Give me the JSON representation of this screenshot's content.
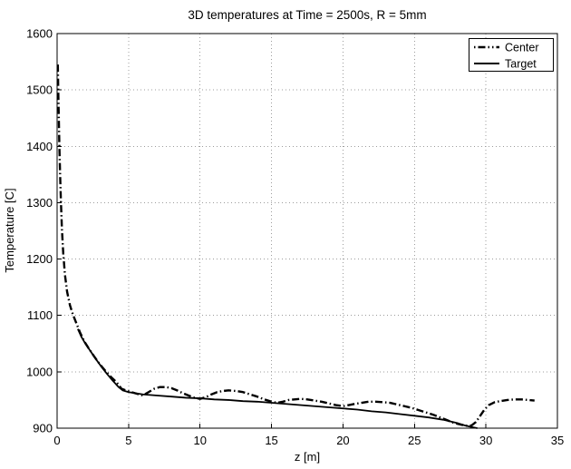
{
  "figure": {
    "background": "#ffffff",
    "text_color": "#000000",
    "grid_color": "#9c9c9c",
    "axis_color": "#000000"
  },
  "chart_data": {
    "type": "line",
    "title": "3D temperatures at Time = 2500s, R = 5mm",
    "xlabel": "z [m]",
    "ylabel": "Temperature [C]",
    "xlim": [
      0,
      35
    ],
    "ylim": [
      900,
      1600
    ],
    "x_ticks": [
      0,
      5,
      10,
      15,
      20,
      25,
      30,
      35
    ],
    "y_ticks": [
      900,
      1000,
      1100,
      1200,
      1300,
      1400,
      1500,
      1600
    ],
    "grid": true,
    "grid_style": "dotted",
    "legend_position": "top-right",
    "series": [
      {
        "name": "Center",
        "line_style": "dash-dot",
        "line_width": 2.4,
        "color": "#000000",
        "points": [
          [
            0.05,
            1545
          ],
          [
            0.08,
            1500
          ],
          [
            0.12,
            1450
          ],
          [
            0.16,
            1400
          ],
          [
            0.21,
            1350
          ],
          [
            0.27,
            1300
          ],
          [
            0.34,
            1252
          ],
          [
            0.43,
            1210
          ],
          [
            0.55,
            1172
          ],
          [
            0.7,
            1142
          ],
          [
            0.9,
            1118
          ],
          [
            1.1,
            1102
          ],
          [
            1.35,
            1086
          ],
          [
            1.6,
            1070
          ],
          [
            1.9,
            1054
          ],
          [
            2.2,
            1042
          ],
          [
            2.6,
            1027
          ],
          [
            3.0,
            1013
          ],
          [
            3.4,
            1001
          ],
          [
            3.8,
            990
          ],
          [
            4.1,
            983
          ],
          [
            4.3,
            977
          ],
          [
            4.5,
            970
          ],
          [
            4.8,
            967
          ],
          [
            5.2,
            964
          ],
          [
            5.6,
            961
          ],
          [
            6.0,
            958
          ],
          [
            6.4,
            964
          ],
          [
            6.8,
            970
          ],
          [
            7.2,
            973
          ],
          [
            7.6,
            973
          ],
          [
            8.0,
            971
          ],
          [
            8.4,
            967
          ],
          [
            8.8,
            962
          ],
          [
            9.2,
            958
          ],
          [
            9.6,
            954
          ],
          [
            10.0,
            952
          ],
          [
            10.4,
            955
          ],
          [
            10.8,
            960
          ],
          [
            11.2,
            964
          ],
          [
            11.6,
            966
          ],
          [
            12.0,
            967
          ],
          [
            12.5,
            966
          ],
          [
            13.0,
            964
          ],
          [
            13.5,
            960
          ],
          [
            14.0,
            956
          ],
          [
            14.5,
            951
          ],
          [
            15.0,
            947
          ],
          [
            15.4,
            945
          ],
          [
            15.8,
            947
          ],
          [
            16.2,
            950
          ],
          [
            16.6,
            951
          ],
          [
            17.0,
            952
          ],
          [
            17.5,
            951
          ],
          [
            18.0,
            949
          ],
          [
            18.5,
            947
          ],
          [
            19.0,
            944
          ],
          [
            19.5,
            941
          ],
          [
            20.0,
            939
          ],
          [
            20.4,
            941
          ],
          [
            20.8,
            943
          ],
          [
            21.3,
            945
          ],
          [
            21.8,
            947
          ],
          [
            22.3,
            947
          ],
          [
            22.8,
            946
          ],
          [
            23.3,
            945
          ],
          [
            23.8,
            942
          ],
          [
            24.3,
            939
          ],
          [
            24.8,
            936
          ],
          [
            25.3,
            932
          ],
          [
            25.8,
            928
          ],
          [
            26.3,
            924
          ],
          [
            26.8,
            919
          ],
          [
            27.3,
            914
          ],
          [
            27.8,
            909
          ],
          [
            28.3,
            906
          ],
          [
            28.7,
            904
          ],
          [
            29.0,
            905
          ],
          [
            29.3,
            911
          ],
          [
            29.6,
            922
          ],
          [
            29.9,
            933
          ],
          [
            30.2,
            941
          ],
          [
            30.6,
            946
          ],
          [
            31.0,
            948
          ],
          [
            31.5,
            950
          ],
          [
            32.0,
            951
          ],
          [
            32.5,
            951
          ],
          [
            33.0,
            950
          ],
          [
            33.4,
            949
          ]
        ]
      },
      {
        "name": "Target",
        "line_style": "solid",
        "line_width": 1.8,
        "color": "#000000",
        "points": [
          [
            1.45,
            1076
          ],
          [
            1.7,
            1062
          ],
          [
            2.0,
            1049
          ],
          [
            2.3,
            1038
          ],
          [
            2.7,
            1023
          ],
          [
            3.1,
            1009
          ],
          [
            3.5,
            996
          ],
          [
            3.9,
            984
          ],
          [
            4.3,
            973
          ],
          [
            4.6,
            967
          ],
          [
            5.0,
            964
          ],
          [
            5.5,
            962
          ],
          [
            6.0,
            960
          ],
          [
            6.5,
            959
          ],
          [
            7.0,
            958
          ],
          [
            8.0,
            956
          ],
          [
            9.0,
            954
          ],
          [
            10.0,
            953
          ],
          [
            11.0,
            951
          ],
          [
            12.0,
            950
          ],
          [
            13.0,
            948
          ],
          [
            14.0,
            947
          ],
          [
            15.0,
            945
          ],
          [
            16.0,
            943
          ],
          [
            17.0,
            941
          ],
          [
            18.0,
            939
          ],
          [
            19.0,
            937
          ],
          [
            20.0,
            935
          ],
          [
            21.0,
            933
          ],
          [
            22.0,
            930
          ],
          [
            23.0,
            928
          ],
          [
            24.0,
            925
          ],
          [
            25.0,
            922
          ],
          [
            26.0,
            919
          ],
          [
            26.5,
            917
          ],
          [
            27.0,
            915
          ],
          [
            27.5,
            912
          ],
          [
            28.0,
            909
          ],
          [
            28.5,
            905
          ],
          [
            29.0,
            902
          ],
          [
            29.4,
            900
          ]
        ]
      }
    ]
  }
}
